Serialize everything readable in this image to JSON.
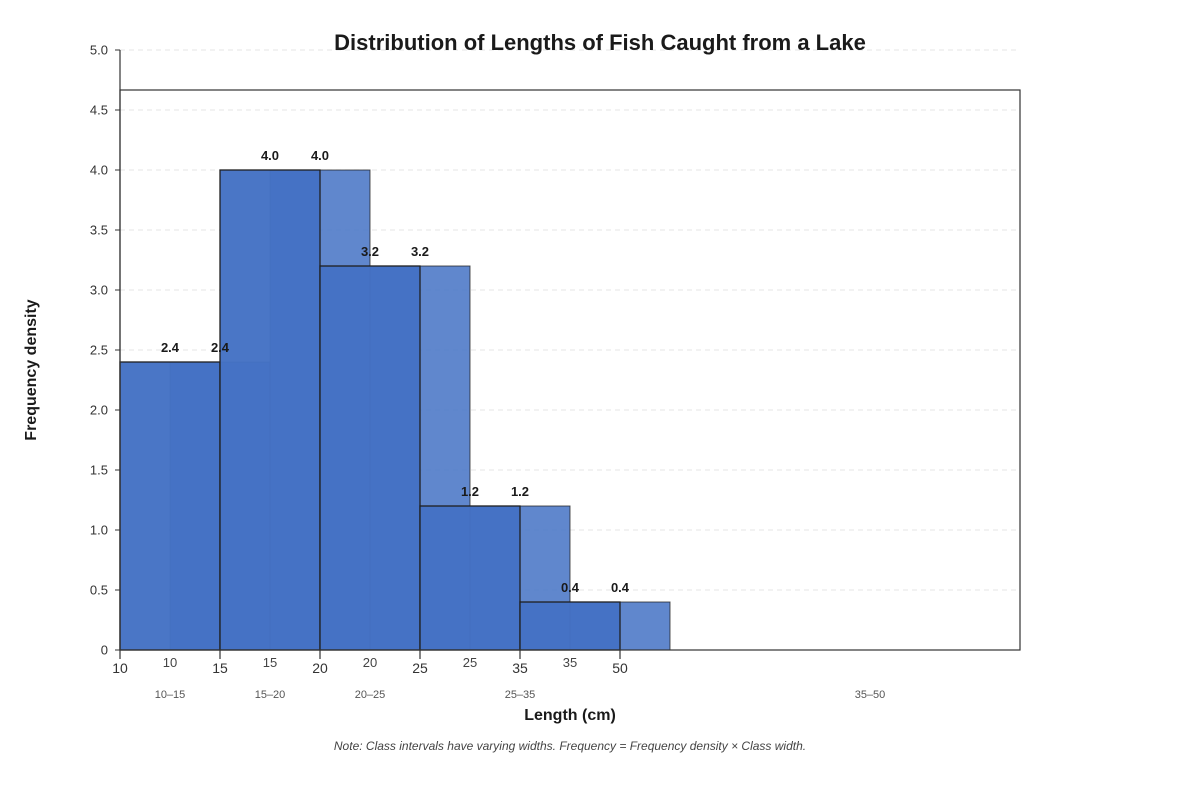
{
  "chart_data": {
    "type": "bar",
    "title": "Distribution of Lengths of Fish Caught from a Lake",
    "xlabel": "Length (cm)",
    "ylabel": "Frequency density",
    "ylim": [
      0,
      5
    ],
    "yticks": [
      "0",
      "0.5",
      "1.0",
      "1.5",
      "2.0",
      "2.5",
      "3.0",
      "3.5",
      "4.0",
      "4.5",
      "5.0"
    ],
    "grid": "horizontal dashed",
    "bar_color": "#4472c4",
    "classes": [
      "10–15",
      "15–20",
      "20–25",
      "25–35",
      "35–50"
    ],
    "frequency_density": [
      2.4,
      4.0,
      3.2,
      1.2,
      0.4
    ],
    "series": [
      {
        "bars": [
          {
            "x0": 10,
            "x1": 15,
            "value": 2.4,
            "label": "2.4"
          },
          {
            "x0": 15,
            "x1": 20,
            "value": 4.0,
            "label": "4.0"
          },
          {
            "x0": 20,
            "x1": 25,
            "value": 3.2,
            "label": "3.2"
          },
          {
            "x0": 25,
            "x1": 35,
            "value": 1.2,
            "label": "1.2"
          },
          {
            "x0": 35,
            "x1": 50,
            "value": 0.4,
            "label": "0.4"
          }
        ],
        "ticks": [
          "10",
          "15",
          "20",
          "25",
          "35",
          "50"
        ]
      },
      {
        "bars": [
          {
            "x0": 10,
            "x1": 15,
            "value": 2.4,
            "label": "2.4"
          },
          {
            "x0": 15,
            "x1": 20,
            "value": 4.0,
            "label": "4.0"
          },
          {
            "x0": 20,
            "x1": 25,
            "value": 3.2,
            "label": "3.2"
          },
          {
            "x0": 25,
            "x1": 35,
            "value": 1.2,
            "label": "1.2"
          },
          {
            "x0": 35,
            "x1": 50,
            "value": 0.4,
            "label": "0.4"
          }
        ],
        "ticks": [
          "10",
          "15",
          "20",
          "25",
          "35"
        ]
      }
    ],
    "note": "Note: Class intervals have varying widths. Frequency = Frequency density × Class width."
  }
}
